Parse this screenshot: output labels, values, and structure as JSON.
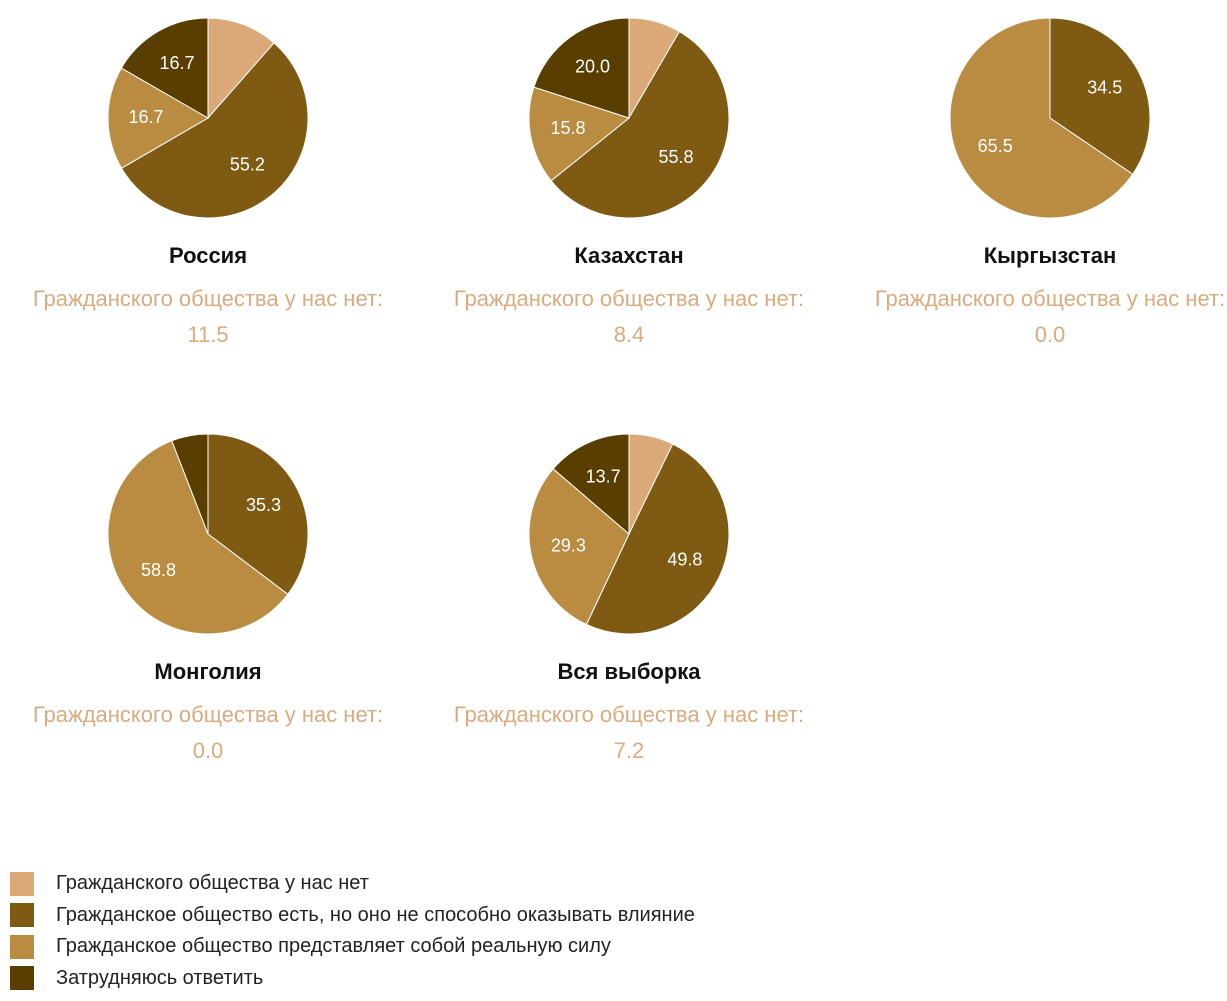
{
  "chart_data": [
    {
      "type": "pie",
      "title": "Россия",
      "caption": "Гражданского общества у нас нет:",
      "caption_value_label": "11.5",
      "values": [
        11.5,
        55.2,
        16.7,
        16.7
      ],
      "value_labels": [
        null,
        "55.2",
        "16.7",
        "16.7"
      ]
    },
    {
      "type": "pie",
      "title": "Казахстан",
      "caption": "Гражданского общества у нас нет:",
      "caption_value_label": "8.4",
      "values": [
        8.4,
        55.8,
        15.8,
        20.0
      ],
      "value_labels": [
        null,
        "55.8",
        "15.8",
        "20.0"
      ]
    },
    {
      "type": "pie",
      "title": "Кыргызстан",
      "caption": "Гражданского общества у нас нет:",
      "caption_value_label": "0.0",
      "values": [
        0,
        34.5,
        65.5,
        0
      ],
      "value_labels": [
        null,
        "34.5",
        "65.5",
        null
      ]
    },
    {
      "type": "pie",
      "title": "Монголия",
      "caption": "Гражданского общества у нас нет:",
      "caption_value_label": "0.0",
      "values": [
        0,
        35.3,
        58.8,
        5.9
      ],
      "value_labels": [
        null,
        "35.3",
        "58.8",
        null
      ]
    },
    {
      "type": "pie",
      "title": "Вся выборка",
      "caption": "Гражданского общества у нас нет:",
      "caption_value_label": "7.2",
      "values": [
        7.2,
        49.8,
        29.3,
        13.7
      ],
      "value_labels": [
        null,
        "49.8",
        "29.3",
        "13.7"
      ]
    }
  ],
  "legend": {
    "labels": [
      "Гражданского общества у нас нет",
      "Гражданское общество есть, но оно не способно оказывать влияние",
      "Гражданское общество представляет собой реальную силу",
      "Затрудняюсь ответить"
    ],
    "colors": [
      "#dba878",
      "#7f5a12",
      "#b98c42",
      "#5a3e00"
    ]
  }
}
